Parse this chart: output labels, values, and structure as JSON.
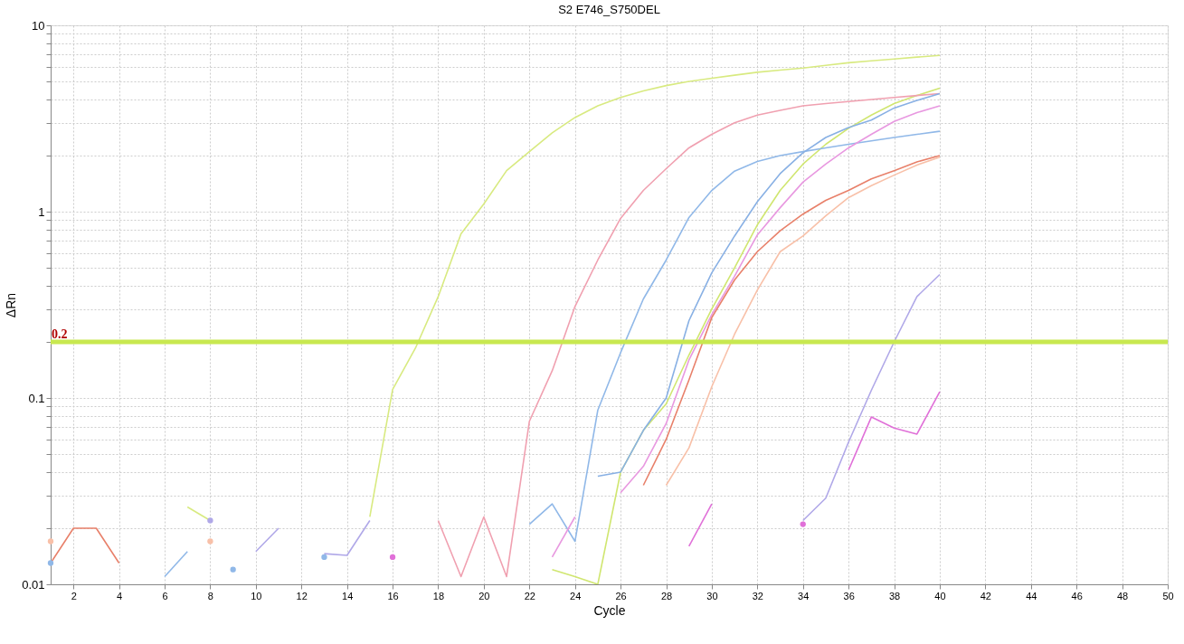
{
  "chart_data": {
    "type": "line",
    "title": "S2 E746_S750DEL",
    "xlabel": "Cycle",
    "ylabel": "ΔRn",
    "x": [
      1,
      2,
      3,
      4,
      5,
      6,
      7,
      8,
      9,
      10,
      11,
      12,
      13,
      14,
      15,
      16,
      17,
      18,
      19,
      20,
      21,
      22,
      23,
      24,
      25,
      26,
      27,
      28,
      29,
      30,
      31,
      32,
      33,
      34,
      35,
      36,
      37,
      38,
      39,
      40
    ],
    "series": [
      {
        "color": "#d8ea80",
        "values": [
          null,
          null,
          null,
          null,
          null,
          null,
          0.026,
          0.022,
          null,
          null,
          null,
          null,
          null,
          null,
          0.023,
          0.111,
          0.185,
          0.35,
          0.76,
          1.1,
          1.66,
          2.1,
          2.65,
          3.2,
          3.7,
          4.1,
          4.45,
          4.75,
          5.0,
          5.2,
          5.4,
          5.6,
          5.75,
          5.9,
          6.1,
          6.3,
          6.45,
          6.6,
          6.75,
          6.9
        ]
      },
      {
        "color": "#d0e670",
        "values": [
          null,
          null,
          null,
          null,
          null,
          null,
          null,
          null,
          null,
          null,
          null,
          null,
          null,
          null,
          null,
          null,
          null,
          null,
          null,
          null,
          null,
          null,
          0.012,
          0.011,
          0.01,
          0.04,
          0.067,
          0.093,
          0.17,
          0.3,
          0.5,
          0.85,
          1.3,
          1.8,
          2.3,
          2.8,
          3.3,
          3.8,
          4.2,
          4.6
        ]
      },
      {
        "color": "#f0a0b0",
        "values": [
          null,
          null,
          null,
          null,
          null,
          null,
          null,
          null,
          null,
          null,
          null,
          null,
          null,
          null,
          null,
          null,
          null,
          0.022,
          0.011,
          0.023,
          0.011,
          0.075,
          0.14,
          0.31,
          0.55,
          0.92,
          1.3,
          1.7,
          2.2,
          2.6,
          3.0,
          3.3,
          3.5,
          3.7,
          3.8,
          3.9,
          4.0,
          4.1,
          4.2,
          4.3
        ]
      },
      {
        "color": "#90b8e8",
        "values": [
          0.013,
          null,
          null,
          null,
          null,
          0.011,
          0.015,
          null,
          0.012,
          null,
          null,
          null,
          0.014,
          null,
          null,
          null,
          null,
          null,
          null,
          null,
          null,
          0.021,
          0.027,
          0.017,
          0.086,
          0.175,
          0.34,
          0.55,
          0.93,
          1.3,
          1.65,
          1.86,
          2.0,
          2.1,
          2.2,
          2.3,
          2.4,
          2.5,
          2.6,
          2.7
        ]
      },
      {
        "color": "#88b0e4",
        "values": [
          null,
          null,
          null,
          null,
          null,
          null,
          null,
          null,
          null,
          null,
          null,
          null,
          null,
          null,
          null,
          null,
          null,
          null,
          null,
          null,
          null,
          null,
          null,
          null,
          0.038,
          0.04,
          0.067,
          0.1,
          0.26,
          0.47,
          0.74,
          1.13,
          1.6,
          2.07,
          2.5,
          2.83,
          3.1,
          3.6,
          3.95,
          4.3
        ]
      },
      {
        "color": "#e898e0",
        "values": [
          null,
          null,
          null,
          null,
          null,
          null,
          null,
          null,
          null,
          null,
          null,
          null,
          null,
          null,
          null,
          null,
          null,
          null,
          null,
          null,
          null,
          null,
          0.014,
          0.023,
          null,
          0.031,
          0.043,
          0.073,
          0.16,
          0.28,
          0.45,
          0.75,
          1.05,
          1.44,
          1.8,
          2.2,
          2.6,
          3.05,
          3.4,
          3.7
        ]
      },
      {
        "color": "#e070d8",
        "values": [
          null,
          null,
          null,
          null,
          null,
          null,
          null,
          null,
          null,
          null,
          null,
          null,
          null,
          null,
          null,
          0.014,
          null,
          null,
          null,
          null,
          null,
          null,
          null,
          null,
          null,
          null,
          null,
          null,
          0.016,
          0.027,
          null,
          null,
          null,
          0.021,
          null,
          0.041,
          0.079,
          0.069,
          0.064,
          0.108
        ]
      },
      {
        "color": "#b0a8e8",
        "values": [
          null,
          null,
          null,
          null,
          null,
          null,
          null,
          0.022,
          null,
          0.015,
          0.02,
          null,
          0.0146,
          0.0143,
          0.022,
          null,
          null,
          null,
          null,
          null,
          null,
          null,
          null,
          null,
          null,
          null,
          null,
          null,
          null,
          null,
          null,
          null,
          null,
          0.022,
          0.029,
          0.058,
          0.11,
          0.2,
          0.35,
          0.46
        ]
      },
      {
        "color": "#e8806a",
        "values": [
          0.013,
          0.02,
          0.02,
          0.013,
          null,
          null,
          null,
          null,
          null,
          null,
          null,
          null,
          null,
          null,
          null,
          null,
          null,
          null,
          null,
          null,
          null,
          null,
          null,
          null,
          null,
          null,
          0.034,
          0.06,
          0.125,
          0.27,
          0.43,
          0.61,
          0.79,
          0.97,
          1.15,
          1.3,
          1.5,
          1.66,
          1.85,
          2.0
        ]
      },
      {
        "color": "#f8c0a8",
        "values": [
          0.017,
          null,
          null,
          null,
          null,
          null,
          null,
          0.017,
          null,
          null,
          null,
          null,
          null,
          null,
          null,
          null,
          null,
          null,
          null,
          null,
          null,
          null,
          null,
          null,
          null,
          null,
          null,
          0.034,
          0.054,
          0.115,
          0.22,
          0.38,
          0.61,
          0.74,
          0.95,
          1.19,
          1.38,
          1.57,
          1.78,
          1.96
        ]
      }
    ],
    "log": "y",
    "xlim": [
      1,
      50
    ],
    "xticks": [
      2,
      4,
      6,
      8,
      10,
      12,
      14,
      16,
      18,
      20,
      22,
      24,
      26,
      28,
      30,
      32,
      34,
      36,
      38,
      40,
      42,
      44,
      46,
      48,
      50
    ],
    "ylim": [
      0.01,
      10
    ],
    "yticks": [
      0.01,
      {
        "value": 0.02,
        "label": null
      },
      {
        "value": 0.03,
        "label": null
      },
      {
        "value": 0.04,
        "label": null
      },
      {
        "value": 0.05,
        "label": null
      },
      {
        "value": 0.06,
        "label": null
      },
      {
        "value": 0.07,
        "label": null
      },
      {
        "value": 0.08,
        "label": null
      },
      {
        "value": 0.09,
        "label": null
      },
      0.1,
      {
        "value": 0.2,
        "label": null
      },
      {
        "value": 0.3,
        "label": null
      },
      {
        "value": 0.4,
        "label": null
      },
      {
        "value": 0.5,
        "label": null
      },
      {
        "value": 0.6,
        "label": null
      },
      {
        "value": 0.7,
        "label": null
      },
      {
        "value": 0.8,
        "label": null
      },
      {
        "value": 0.9,
        "label": null
      },
      1,
      {
        "value": 2,
        "label": null
      },
      {
        "value": 3,
        "label": null
      },
      {
        "value": 4,
        "label": null
      },
      {
        "value": 5,
        "label": null
      },
      {
        "value": 6,
        "label": null
      },
      {
        "value": 7,
        "label": null
      },
      {
        "value": 8,
        "label": null
      },
      {
        "value": 9,
        "label": null
      },
      10
    ],
    "grid": true,
    "marker": "none",
    "line_style": "solid",
    "legend": false,
    "ref_lines": [
      {
        "axis": "y",
        "value": 0.2,
        "label": "0.2",
        "color": "#c8e850"
      }
    ]
  }
}
